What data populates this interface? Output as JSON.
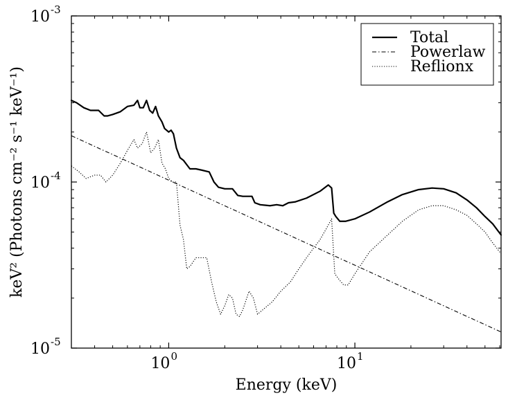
{
  "chart_data": {
    "type": "line",
    "xscale": "log",
    "yscale": "log",
    "xlabel": "Energy (keV)",
    "ylabel": "keV² (Photons cm⁻² s⁻¹ keV⁻¹)",
    "xlim": [
      0.3,
      61
    ],
    "ylim": [
      1e-05,
      0.001
    ],
    "xticks": [
      {
        "value": 1,
        "base": "10",
        "exp": "0"
      },
      {
        "value": 10,
        "base": "10",
        "exp": "1"
      }
    ],
    "yticks": [
      {
        "value": 1e-05,
        "base": "10",
        "exp": "-5"
      },
      {
        "value": 0.0001,
        "base": "10",
        "exp": "-4"
      },
      {
        "value": 0.001,
        "base": "10",
        "exp": "-3"
      }
    ],
    "legend_position": "top-right",
    "series": [
      {
        "name": "Total",
        "style": "solid",
        "x": [
          0.3,
          0.32,
          0.35,
          0.38,
          0.42,
          0.45,
          0.47,
          0.5,
          0.55,
          0.6,
          0.65,
          0.68,
          0.7,
          0.73,
          0.76,
          0.79,
          0.82,
          0.85,
          0.88,
          0.92,
          0.95,
          1.0,
          1.03,
          1.06,
          1.1,
          1.15,
          1.2,
          1.3,
          1.4,
          1.5,
          1.65,
          1.75,
          1.85,
          2.0,
          2.2,
          2.35,
          2.5,
          2.8,
          2.9,
          3.1,
          3.5,
          3.8,
          4.1,
          4.4,
          4.8,
          5.5,
          6.5,
          7.2,
          7.5,
          7.7,
          7.9,
          8.3,
          8.9,
          10,
          12,
          15,
          18,
          22,
          26,
          30,
          35,
          40,
          45,
          50,
          55,
          61
        ],
        "y": [
          0.00031,
          0.0003,
          0.00028,
          0.00027,
          0.00027,
          0.00025,
          0.00025,
          0.000255,
          0.000265,
          0.000285,
          0.00029,
          0.00031,
          0.00028,
          0.00028,
          0.00031,
          0.00027,
          0.00026,
          0.000285,
          0.00025,
          0.00023,
          0.00021,
          0.0002,
          0.000205,
          0.000195,
          0.00016,
          0.00014,
          0.000135,
          0.00012,
          0.00012,
          0.000118,
          0.000115,
          0.0001,
          9.3e-05,
          9.1e-05,
          9.1e-05,
          8.3e-05,
          8.2e-05,
          8.2e-05,
          7.5e-05,
          7.3e-05,
          7.2e-05,
          7.3e-05,
          7.2e-05,
          7.5e-05,
          7.6e-05,
          8e-05,
          8.8e-05,
          9.6e-05,
          9.2e-05,
          6.5e-05,
          6.2e-05,
          5.8e-05,
          5.8e-05,
          6e-05,
          6.6e-05,
          7.6e-05,
          8.4e-05,
          9e-05,
          9.2e-05,
          9.1e-05,
          8.6e-05,
          7.8e-05,
          7e-05,
          6.2e-05,
          5.6e-05,
          4.8e-05
        ]
      },
      {
        "name": "Powerlaw",
        "style": "dashdot",
        "x": [
          0.3,
          61
        ],
        "y": [
          0.00019,
          1.25e-05
        ]
      },
      {
        "name": "Reflionx",
        "style": "dotted",
        "x": [
          0.3,
          0.33,
          0.36,
          0.4,
          0.43,
          0.46,
          0.5,
          0.55,
          0.6,
          0.65,
          0.68,
          0.72,
          0.76,
          0.8,
          0.84,
          0.88,
          0.92,
          0.96,
          1.0,
          1.05,
          1.1,
          1.15,
          1.2,
          1.25,
          1.3,
          1.4,
          1.5,
          1.6,
          1.7,
          1.8,
          1.9,
          2.0,
          2.1,
          2.2,
          2.3,
          2.4,
          2.5,
          2.7,
          2.85,
          3.0,
          3.2,
          3.6,
          4.0,
          4.5,
          5.0,
          5.5,
          6.0,
          6.5,
          7.0,
          7.5,
          7.8,
          8.2,
          8.7,
          9.2,
          10,
          12,
          15,
          18,
          22,
          26,
          30,
          35,
          40,
          45,
          50,
          55,
          61
        ],
        "y": [
          0.000125,
          0.000115,
          0.000105,
          0.00011,
          0.00011,
          0.0001,
          0.00011,
          0.00013,
          0.000155,
          0.00018,
          0.00016,
          0.00017,
          0.0002,
          0.00015,
          0.00016,
          0.00018,
          0.00013,
          0.00012,
          0.000105,
          0.0001,
          0.0001,
          5.5e-05,
          4.5e-05,
          3e-05,
          3.1e-05,
          3.5e-05,
          3.5e-05,
          3.5e-05,
          2.5e-05,
          1.9e-05,
          1.6e-05,
          1.8e-05,
          2.1e-05,
          2e-05,
          1.6e-05,
          1.55e-05,
          1.7e-05,
          2.2e-05,
          2e-05,
          1.6e-05,
          1.7e-05,
          1.9e-05,
          2.2e-05,
          2.5e-05,
          3e-05,
          3.5e-05,
          4e-05,
          4.5e-05,
          5.2e-05,
          6e-05,
          2.8e-05,
          2.6e-05,
          2.4e-05,
          2.4e-05,
          2.8e-05,
          3.8e-05,
          4.8e-05,
          5.8e-05,
          6.8e-05,
          7.2e-05,
          7.2e-05,
          6.8e-05,
          6.3e-05,
          5.6e-05,
          5e-05,
          4.3e-05,
          3.7e-05
        ]
      }
    ]
  }
}
